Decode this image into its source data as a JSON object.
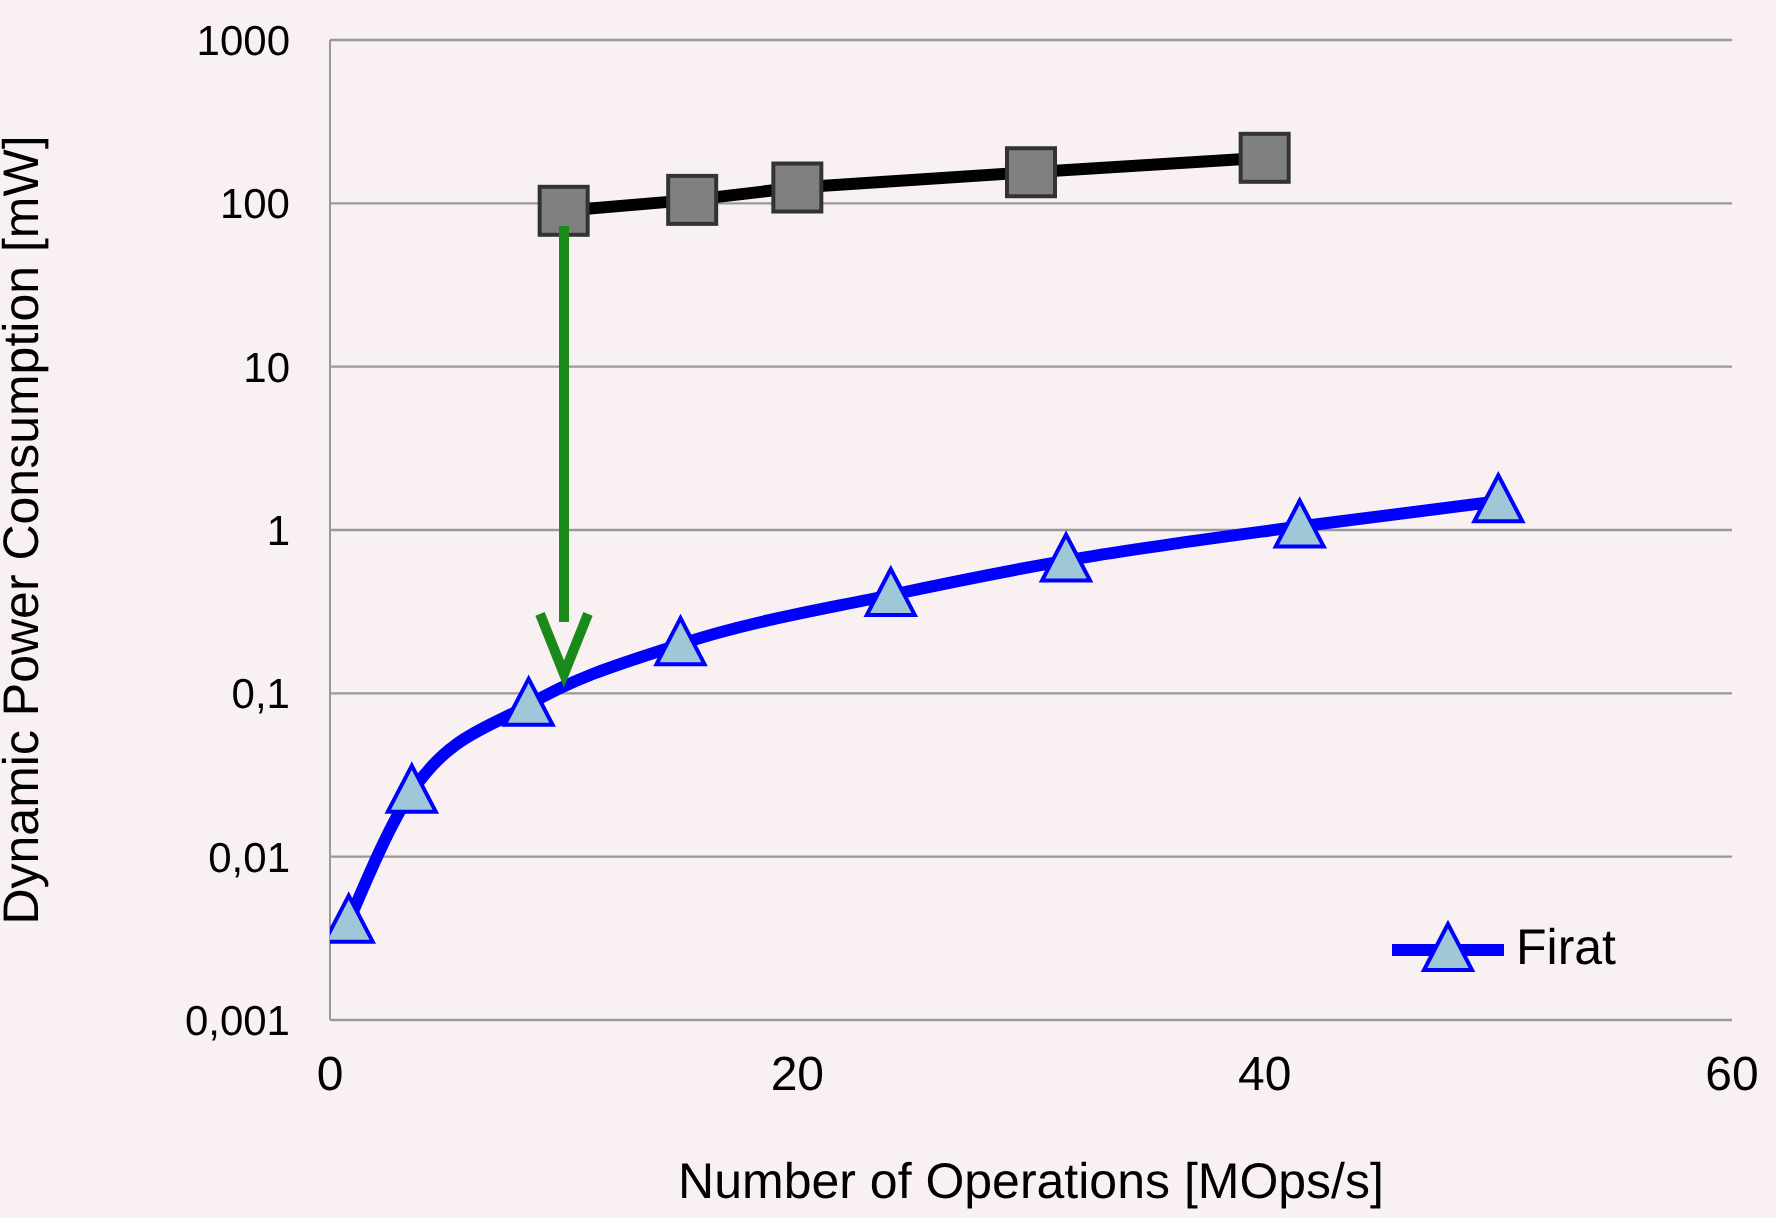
{
  "chart_data": {
    "type": "line",
    "xlabel": "Number of Operations [MOps/s]",
    "ylabel": "Dynamic Power Consumption [mW]",
    "log": "y",
    "xlim": [
      0,
      60
    ],
    "xticks": [
      0,
      20,
      40,
      60
    ],
    "ylim": [
      0.001,
      1000
    ],
    "yticks": [
      {
        "value": 0.001,
        "label": "0,001"
      },
      {
        "value": 0.01,
        "label": "0,01"
      },
      {
        "value": 0.1,
        "label": "0,1"
      },
      1,
      10,
      100,
      1000
    ],
    "grid": "y",
    "legend": "bottom right",
    "line_style": "solid",
    "series": [
      {
        "color": "#000000",
        "marker": "square",
        "x": [
          10,
          15.5,
          20,
          30,
          40
        ],
        "values": [
          90,
          105,
          125,
          155,
          190
        ]
      },
      {
        "name": "Firat",
        "color": "#0000ff",
        "marker": "triangle",
        "x": [
          0.8,
          3.5,
          8.5,
          15,
          24,
          31.5,
          41.5,
          50
        ],
        "values": [
          0.004,
          0.025,
          0.085,
          0.2,
          0.4,
          0.65,
          1.05,
          1.5
        ]
      }
    ]
  }
}
